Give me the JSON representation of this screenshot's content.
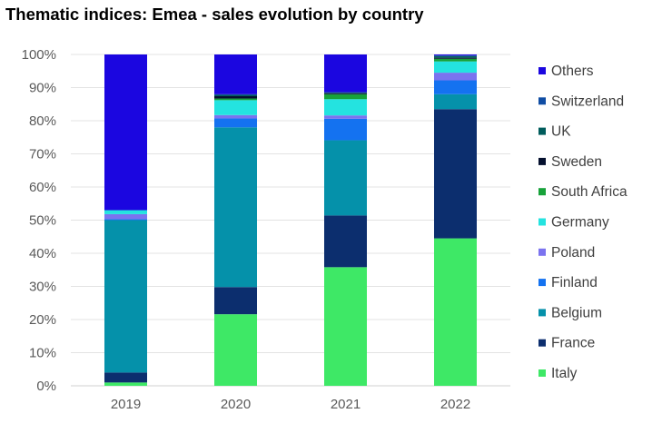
{
  "chart_data": {
    "type": "bar",
    "stacked": true,
    "title": "Thematic indices: Emea - sales evolution by country",
    "xlabel": "",
    "ylabel": "",
    "ylim": [
      0,
      100
    ],
    "y_ticks": [
      "0%",
      "10%",
      "20%",
      "30%",
      "40%",
      "50%",
      "60%",
      "70%",
      "80%",
      "90%",
      "100%"
    ],
    "categories": [
      "2019",
      "2020",
      "2021",
      "2022"
    ],
    "grid": true,
    "legend_position": "right",
    "series": [
      {
        "name": "Italy",
        "color": "#3ee866",
        "values": [
          1.0,
          21.6,
          35.8,
          44.5
        ]
      },
      {
        "name": "France",
        "color": "#0c2e6e",
        "values": [
          3.0,
          8.2,
          15.6,
          39.0
        ]
      },
      {
        "name": "Belgium",
        "color": "#0591aa",
        "values": [
          46.0,
          48.2,
          22.7,
          4.5
        ]
      },
      {
        "name": "Finland",
        "color": "#1472f0",
        "values": [
          0.3,
          2.7,
          6.5,
          4.2
        ]
      },
      {
        "name": "Poland",
        "color": "#7b73ef",
        "values": [
          1.5,
          1.0,
          1.0,
          2.3
        ]
      },
      {
        "name": "Germany",
        "color": "#24e3e0",
        "values": [
          1.2,
          4.5,
          4.9,
          3.4
        ]
      },
      {
        "name": "South Africa",
        "color": "#17a23a",
        "values": [
          0.0,
          0.5,
          1.5,
          0.8
        ]
      },
      {
        "name": "Sweden",
        "color": "#04102e",
        "values": [
          0.0,
          0.7,
          0.3,
          0.3
        ]
      },
      {
        "name": "UK",
        "color": "#005c5c",
        "values": [
          0.0,
          0.4,
          0.2,
          0.5
        ]
      },
      {
        "name": "Switzerland",
        "color": "#104da4",
        "values": [
          0.0,
          0.2,
          0.1,
          0.2
        ]
      },
      {
        "name": "Others",
        "color": "#1b06e0",
        "values": [
          47.0,
          12.0,
          11.4,
          0.3
        ]
      }
    ]
  }
}
